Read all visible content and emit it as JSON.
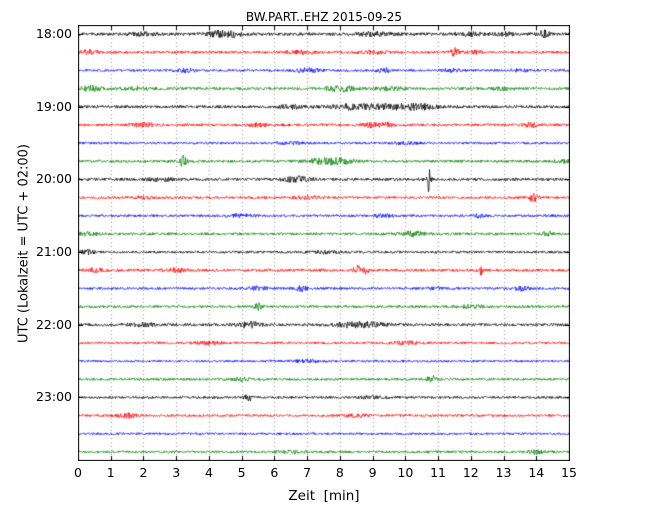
{
  "figure": {
    "title": "BW.PART..EHZ 2015-09-25",
    "xlabel": "Zeit  [min]",
    "ylabel": "UTC (Lokalzeit = UTC + 02:00)"
  },
  "chart_data": {
    "type": "line",
    "subtype": "seismogram-dayplot-helicorder",
    "station": "BW.PART..EHZ",
    "date": "2015-09-25",
    "title": "BW.PART..EHZ 2015-09-25",
    "xlabel": "Zeit  [min]",
    "ylabel": "UTC (Lokalzeit = UTC + 02:00)",
    "xlim": [
      0,
      15
    ],
    "x_ticks": [
      "0",
      "1",
      "2",
      "3",
      "4",
      "5",
      "6",
      "7",
      "8",
      "9",
      "10",
      "11",
      "12",
      "13",
      "14",
      "15"
    ],
    "minutes_per_row": 15,
    "rows": 24,
    "grid": {
      "vertical": true,
      "horizontal": false,
      "style": "dotted",
      "color": "#999999"
    },
    "color_cycle": [
      "#000000",
      "#ff0000",
      "#0000ff",
      "#008000"
    ],
    "hour_labels": [
      {
        "label": "18:00",
        "row": 0
      },
      {
        "label": "19:00",
        "row": 4
      },
      {
        "label": "20:00",
        "row": 8
      },
      {
        "label": "21:00",
        "row": 12
      },
      {
        "label": "22:00",
        "row": 16
      },
      {
        "label": "23:00",
        "row": 20
      }
    ],
    "traces": [
      {
        "start": "18:00",
        "color": "#000000",
        "base": 1.5,
        "events": [
          [
            2.0,
            1.2,
            0.3
          ],
          [
            4.3,
            2.4,
            0.3
          ],
          [
            4.8,
            1.8,
            0.2
          ],
          [
            9.0,
            1.5,
            0.4
          ],
          [
            12.0,
            1.4,
            0.3
          ],
          [
            13.0,
            1.4,
            0.2
          ],
          [
            14.2,
            3.0,
            0.12
          ]
        ]
      },
      {
        "start": "18:15",
        "color": "#ff0000",
        "base": 1.3,
        "events": [
          [
            0.3,
            2.0,
            0.2
          ],
          [
            6.8,
            1.5,
            0.3
          ],
          [
            9.0,
            1.2,
            0.3
          ],
          [
            11.5,
            3.5,
            0.1
          ],
          [
            12.1,
            1.4,
            0.2
          ]
        ]
      },
      {
        "start": "18:30",
        "color": "#0000ff",
        "base": 1.2,
        "events": [
          [
            3.3,
            1.4,
            0.2
          ],
          [
            7.0,
            1.9,
            0.25
          ],
          [
            9.3,
            2.4,
            0.15
          ],
          [
            11.4,
            1.5,
            0.2
          ],
          [
            13.5,
            1.2,
            0.2
          ]
        ]
      },
      {
        "start": "18:45",
        "color": "#008000",
        "base": 1.4,
        "events": [
          [
            0.4,
            2.4,
            0.2
          ],
          [
            1.8,
            1.5,
            0.25
          ],
          [
            8.0,
            2.9,
            0.3
          ],
          [
            9.5,
            1.4,
            0.3
          ],
          [
            13.0,
            1.2,
            0.2
          ]
        ]
      },
      {
        "start": "19:00",
        "color": "#000000",
        "base": 1.4,
        "events": [
          [
            6.5,
            1.5,
            0.3
          ],
          [
            8.5,
            2.4,
            0.6
          ],
          [
            9.8,
            2.4,
            0.4
          ],
          [
            10.5,
            2.0,
            0.3
          ]
        ]
      },
      {
        "start": "19:15",
        "color": "#ff0000",
        "base": 1.3,
        "events": [
          [
            2.0,
            1.7,
            0.25
          ],
          [
            5.5,
            1.2,
            0.2
          ],
          [
            9.0,
            2.2,
            0.2
          ],
          [
            9.4,
            1.9,
            0.15
          ],
          [
            13.8,
            2.1,
            0.15
          ]
        ]
      },
      {
        "start": "19:30",
        "color": "#0000ff",
        "base": 1.1,
        "events": [
          [
            6.5,
            1.1,
            0.3
          ],
          [
            10.0,
            1.1,
            0.3
          ]
        ]
      },
      {
        "start": "19:45",
        "color": "#008000",
        "base": 1.3,
        "events": [
          [
            3.2,
            5.0,
            0.08
          ],
          [
            7.5,
            2.4,
            0.4
          ],
          [
            8.0,
            1.9,
            0.3
          ],
          [
            14.8,
            1.4,
            0.2
          ]
        ]
      },
      {
        "start": "20:00",
        "color": "#000000",
        "base": 1.4,
        "events": [
          [
            2.5,
            1.2,
            0.3
          ],
          [
            6.7,
            2.4,
            0.3
          ],
          [
            10.7,
            12.0,
            0.05
          ]
        ]
      },
      {
        "start": "20:15",
        "color": "#ff0000",
        "base": 1.3,
        "events": [
          [
            2.0,
            1.2,
            0.3
          ],
          [
            7.0,
            1.3,
            0.3
          ],
          [
            13.9,
            3.4,
            0.1
          ]
        ]
      },
      {
        "start": "20:30",
        "color": "#0000ff",
        "base": 1.2,
        "events": [
          [
            5.0,
            1.2,
            0.3
          ],
          [
            9.3,
            1.7,
            0.2
          ],
          [
            12.2,
            1.8,
            0.15
          ]
        ]
      },
      {
        "start": "20:45",
        "color": "#008000",
        "base": 1.3,
        "events": [
          [
            0.3,
            1.4,
            0.2
          ],
          [
            10.2,
            2.1,
            0.25
          ],
          [
            14.3,
            2.4,
            0.1
          ]
        ]
      },
      {
        "start": "21:00",
        "color": "#000000",
        "base": 1.2,
        "events": [
          [
            0.3,
            2.4,
            0.15
          ],
          [
            7.5,
            1.2,
            0.3
          ]
        ]
      },
      {
        "start": "21:15",
        "color": "#ff0000",
        "base": 1.4,
        "events": [
          [
            0.5,
            1.5,
            0.2
          ],
          [
            3.0,
            1.3,
            0.25
          ],
          [
            8.5,
            4.5,
            0.07
          ],
          [
            8.8,
            3.4,
            0.07
          ],
          [
            12.3,
            4.0,
            0.07
          ]
        ]
      },
      {
        "start": "21:30",
        "color": "#0000ff",
        "base": 1.2,
        "events": [
          [
            5.5,
            1.7,
            0.2
          ],
          [
            6.8,
            2.1,
            0.15
          ],
          [
            11.0,
            1.2,
            0.25
          ],
          [
            13.5,
            1.7,
            0.2
          ]
        ]
      },
      {
        "start": "21:45",
        "color": "#008000",
        "base": 1.3,
        "events": [
          [
            5.5,
            4.0,
            0.08
          ],
          [
            12.0,
            1.3,
            0.3
          ]
        ]
      },
      {
        "start": "22:00",
        "color": "#000000",
        "base": 1.4,
        "events": [
          [
            2.0,
            1.3,
            0.3
          ],
          [
            5.2,
            2.7,
            0.25
          ],
          [
            8.3,
            2.0,
            0.4
          ],
          [
            9.0,
            1.7,
            0.3
          ]
        ]
      },
      {
        "start": "22:15",
        "color": "#ff0000",
        "base": 1.2,
        "events": [
          [
            4.0,
            1.2,
            0.3
          ],
          [
            10.0,
            1.2,
            0.3
          ]
        ]
      },
      {
        "start": "22:30",
        "color": "#0000ff",
        "base": 1.1,
        "events": [
          [
            7.0,
            1.1,
            0.3
          ]
        ]
      },
      {
        "start": "22:45",
        "color": "#008000",
        "base": 1.2,
        "events": [
          [
            5.0,
            1.2,
            0.3
          ],
          [
            10.8,
            3.0,
            0.12
          ]
        ]
      },
      {
        "start": "23:00",
        "color": "#000000",
        "base": 1.2,
        "events": [
          [
            5.2,
            3.5,
            0.08
          ],
          [
            9.0,
            1.2,
            0.3
          ]
        ]
      },
      {
        "start": "23:15",
        "color": "#ff0000",
        "base": 1.2,
        "events": [
          [
            1.5,
            2.0,
            0.2
          ],
          [
            8.5,
            1.3,
            0.25
          ]
        ]
      },
      {
        "start": "23:30",
        "color": "#0000ff",
        "base": 1.1,
        "events": []
      },
      {
        "start": "23:45",
        "color": "#008000",
        "base": 1.2,
        "events": [
          [
            6.5,
            1.2,
            0.3
          ],
          [
            14.0,
            2.0,
            0.2
          ]
        ]
      }
    ]
  }
}
